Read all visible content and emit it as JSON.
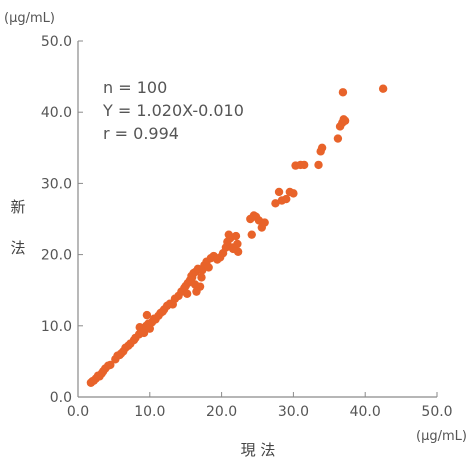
{
  "chart_data": {
    "type": "scatter",
    "title": "",
    "xlabel": "現 法",
    "ylabel_chars": [
      "新",
      "法"
    ],
    "x_unit": "(μg/mL)",
    "y_unit": "(μg/mL)",
    "xlim": [
      0,
      50
    ],
    "ylim": [
      0,
      50
    ],
    "x_ticks": [
      "0.0",
      "10.0",
      "20.0",
      "30.0",
      "40.0",
      "50.0"
    ],
    "y_ticks": [
      "0.0",
      "10.0",
      "20.0",
      "30.0",
      "40.0",
      "50.0"
    ],
    "grid": false,
    "marker_color": "#e8632a",
    "annotations": [
      "n = 100",
      "Y = 1.020X-0.010",
      "r = 0.994"
    ],
    "points": [
      [
        1.8,
        2.0
      ],
      [
        2.2,
        2.3
      ],
      [
        2.5,
        2.6
      ],
      [
        3.0,
        2.9
      ],
      [
        3.3,
        3.3
      ],
      [
        2.8,
        3.0
      ],
      [
        3.5,
        3.6
      ],
      [
        2.0,
        2.2
      ],
      [
        4.5,
        4.5
      ],
      [
        5.2,
        5.3
      ],
      [
        5.5,
        5.8
      ],
      [
        6.0,
        6.1
      ],
      [
        6.3,
        6.4
      ],
      [
        5.8,
        5.9
      ],
      [
        6.6,
        6.9
      ],
      [
        7.0,
        7.2
      ],
      [
        7.3,
        7.5
      ],
      [
        7.8,
        8.0
      ],
      [
        8.0,
        8.3
      ],
      [
        8.5,
        8.8
      ],
      [
        8.9,
        9.2
      ],
      [
        8.6,
        9.8
      ],
      [
        9.2,
        9.0
      ],
      [
        9.5,
        10.0
      ],
      [
        9.8,
        10.3
      ],
      [
        10.0,
        9.6
      ],
      [
        10.3,
        10.5
      ],
      [
        10.6,
        11.0
      ],
      [
        9.6,
        11.5
      ],
      [
        10.8,
        10.9
      ],
      [
        11.2,
        11.4
      ],
      [
        11.5,
        11.8
      ],
      [
        12.0,
        12.3
      ],
      [
        12.4,
        12.8
      ],
      [
        11.8,
        12.0
      ],
      [
        12.8,
        13.1
      ],
      [
        13.5,
        13.8
      ],
      [
        14.0,
        14.2
      ],
      [
        14.4,
        14.8
      ],
      [
        14.8,
        15.3
      ],
      [
        15.0,
        15.6
      ],
      [
        15.3,
        16.0
      ],
      [
        15.6,
        16.4
      ],
      [
        15.9,
        16.8
      ],
      [
        16.1,
        17.4
      ],
      [
        15.8,
        17.0
      ],
      [
        16.4,
        17.6
      ],
      [
        16.7,
        18.0
      ],
      [
        16.3,
        15.8
      ],
      [
        17.0,
        15.5
      ],
      [
        16.5,
        14.8
      ],
      [
        15.2,
        14.5
      ],
      [
        17.3,
        17.8
      ],
      [
        17.6,
        18.5
      ],
      [
        17.9,
        19.0
      ],
      [
        18.2,
        18.2
      ],
      [
        18.5,
        19.5
      ],
      [
        18.9,
        19.8
      ],
      [
        17.2,
        16.8
      ],
      [
        19.4,
        19.3
      ],
      [
        19.8,
        19.6
      ],
      [
        20.2,
        20.2
      ],
      [
        20.6,
        21.0
      ],
      [
        20.8,
        21.8
      ],
      [
        21.2,
        22.3
      ],
      [
        21.5,
        21.0
      ],
      [
        21.0,
        22.8
      ],
      [
        22.0,
        22.6
      ],
      [
        22.2,
        21.5
      ],
      [
        22.3,
        20.4
      ],
      [
        21.6,
        20.8
      ],
      [
        24.0,
        25.0
      ],
      [
        24.5,
        25.5
      ],
      [
        24.8,
        25.3
      ],
      [
        25.2,
        24.8
      ],
      [
        25.6,
        23.8
      ],
      [
        24.2,
        22.8
      ],
      [
        26.0,
        24.5
      ],
      [
        27.5,
        27.2
      ],
      [
        28.0,
        28.8
      ],
      [
        28.4,
        27.6
      ],
      [
        29.0,
        27.8
      ],
      [
        29.5,
        28.8
      ],
      [
        30.0,
        28.6
      ],
      [
        30.3,
        32.5
      ],
      [
        31.0,
        32.6
      ],
      [
        31.5,
        32.6
      ],
      [
        33.5,
        32.6
      ],
      [
        33.8,
        34.5
      ],
      [
        34.0,
        35.0
      ],
      [
        36.2,
        36.3
      ],
      [
        36.5,
        38.0
      ],
      [
        36.8,
        38.5
      ],
      [
        37.0,
        39.0
      ],
      [
        37.2,
        38.8
      ],
      [
        36.9,
        42.8
      ],
      [
        42.5,
        43.3
      ],
      [
        3.8,
        4.0
      ],
      [
        4.2,
        4.4
      ],
      [
        13.2,
        13.0
      ]
    ]
  }
}
